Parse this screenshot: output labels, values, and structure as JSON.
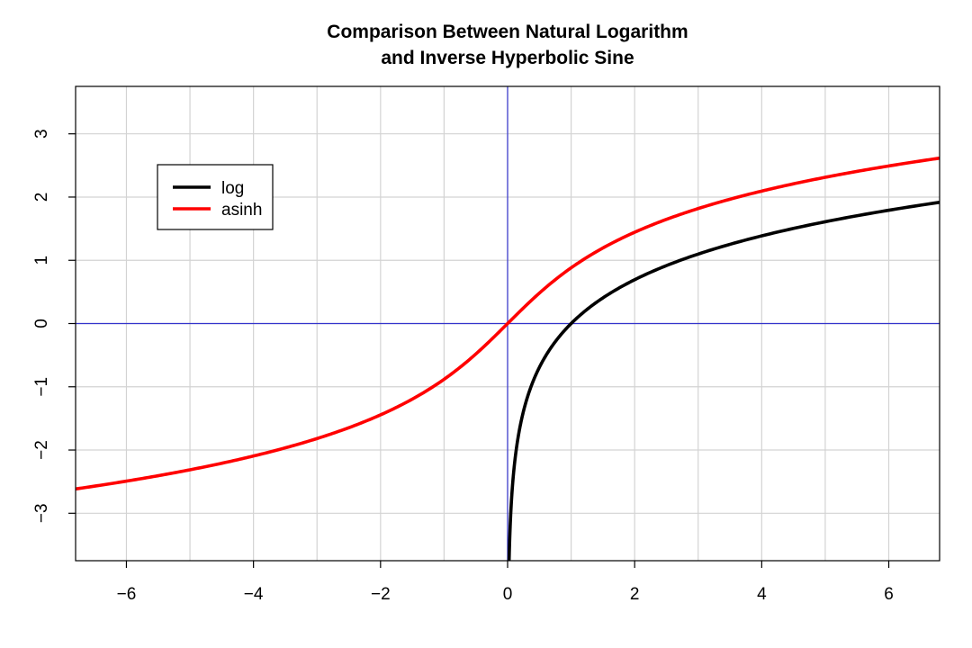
{
  "chart_data": {
    "type": "line",
    "title": "Comparison Between Natural Logarithm",
    "subtitle": "and Inverse Hyperbolic Sine",
    "xlabel": "",
    "ylabel": "",
    "xlim": [
      -6.8,
      6.8
    ],
    "ylim": [
      -3.75,
      3.75
    ],
    "x_ticks": [
      -6,
      -4,
      -2,
      0,
      2,
      4,
      6
    ],
    "x_tick_labels": [
      "−6",
      "−4",
      "−2",
      "0",
      "2",
      "4",
      "6"
    ],
    "y_ticks": [
      -3,
      -2,
      -1,
      0,
      1,
      2,
      3
    ],
    "y_tick_labels": [
      "−3",
      "−2",
      "−1",
      "0",
      "1",
      "2",
      "3"
    ],
    "grid": true,
    "reference_lines": {
      "x": 0,
      "y": 0,
      "color": "#3333cc"
    },
    "legend": {
      "position": "top-left",
      "entries": [
        "log",
        "asinh"
      ]
    },
    "series": [
      {
        "name": "log",
        "color": "#000000",
        "x": [
          0.025,
          0.05,
          0.1,
          0.25,
          0.5,
          1,
          1.5,
          2,
          3,
          4,
          5,
          6,
          6.8
        ],
        "y": [
          -3.69,
          -3.0,
          -2.3,
          -1.39,
          -0.69,
          0,
          0.41,
          0.69,
          1.1,
          1.39,
          1.61,
          1.79,
          1.92
        ]
      },
      {
        "name": "asinh",
        "color": "#ff0000",
        "x": [
          -6.8,
          -6,
          -5,
          -4,
          -3,
          -2,
          -1.5,
          -1,
          -0.5,
          0,
          0.5,
          1,
          1.5,
          2,
          3,
          4,
          5,
          6,
          6.8
        ],
        "y": [
          -2.62,
          -2.49,
          -2.31,
          -2.09,
          -1.82,
          -1.44,
          -1.19,
          -0.88,
          -0.48,
          0,
          0.48,
          0.88,
          1.19,
          1.44,
          1.82,
          2.09,
          2.31,
          2.49,
          2.62
        ]
      }
    ]
  }
}
